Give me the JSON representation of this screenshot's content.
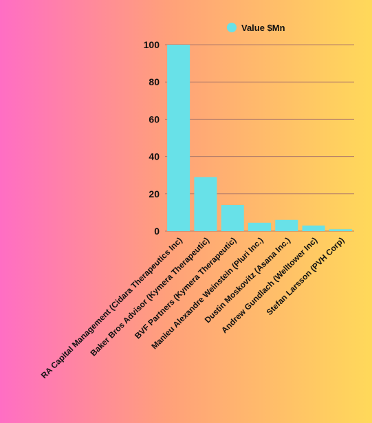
{
  "chart_data": {
    "type": "bar",
    "categories": [
      "RA Capital Management (Cidara Therapeutics Inc)",
      "Baker Bros Advisor (Kymera Therapeutic)",
      "BVF Partners (Kymera Therapeutic)",
      "Manieu Alexandre Weinstein (Pluri Inc.)",
      "Dustin Moskovitz (Asana Inc.)",
      "Andrew Gundlach (Welltower Inc)",
      "Stefan Larsson (PVH Corp)"
    ],
    "series": [
      {
        "name": "Value $Mn",
        "values": [
          100,
          29,
          14,
          4.5,
          6,
          3,
          1
        ]
      }
    ],
    "ylim": [
      0,
      100
    ],
    "yticks": [
      0,
      20,
      40,
      60,
      80,
      100
    ],
    "grid": true,
    "legend": "top",
    "colors": {
      "bar": "#68e1e8",
      "grid": "#b07a6a",
      "text": "#111111"
    }
  }
}
